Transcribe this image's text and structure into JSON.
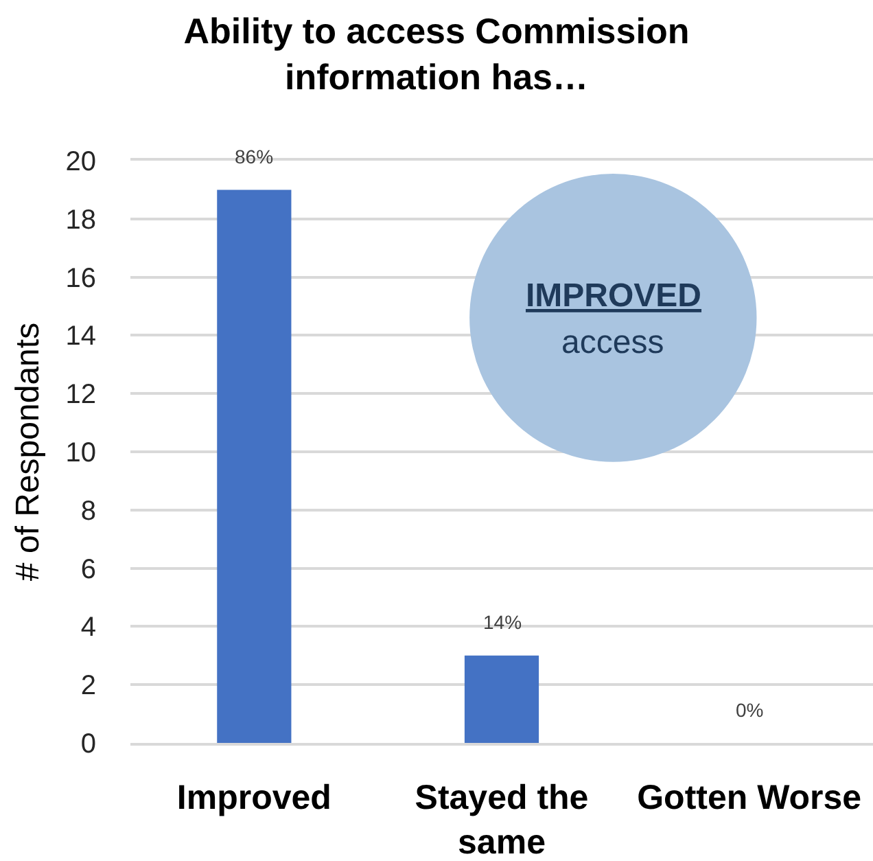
{
  "chart_data": {
    "type": "bar",
    "title": "Ability to access Commission information has…",
    "ylabel": "# of Respondants",
    "categories": [
      "Improved",
      "Stayed the same",
      "Gotten Worse"
    ],
    "values": [
      19,
      3,
      0
    ],
    "color": "#4472c4",
    "ylim": [
      0,
      20
    ],
    "yticks": [
      0,
      2,
      4,
      6,
      8,
      10,
      12,
      14,
      16,
      18,
      20
    ],
    "grid": "y",
    "annotations": [
      {
        "text": "86%",
        "x": "Improved",
        "y": 19
      },
      {
        "text": "14%",
        "x": "Stayed the same",
        "y": 3
      },
      {
        "text": "0%",
        "x": "Gotten Worse",
        "y": 0
      },
      "IMPROVED",
      "access"
    ]
  }
}
